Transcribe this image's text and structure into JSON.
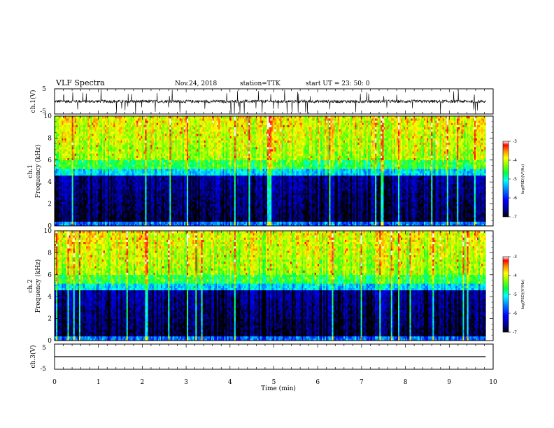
{
  "header": {
    "title": "VLF Spectra",
    "date": "Nov.24, 2018",
    "station": "station=TTK",
    "start_ut": "start UT =   23: 50: 0"
  },
  "chart_data": [
    {
      "type": "line",
      "name": "ch1-waveform",
      "ylabel": "ch.1(V)",
      "ylim": [
        -5,
        5
      ],
      "yticks": [
        "5",
        "-5"
      ],
      "description_values": {
        "baseline_v": 0,
        "spike_range_v": [
          -5,
          5
        ]
      }
    },
    {
      "type": "heatmap",
      "name": "ch1-spectrogram",
      "ylabel": "ch.1\nFrequency (kHz)",
      "ylabel_lines": [
        "ch.1",
        "Frequency (kHz)"
      ],
      "ylim": [
        0,
        10
      ],
      "yticks": [
        "0",
        "2",
        "4",
        "6",
        "8",
        "10"
      ],
      "xlim": [
        0,
        9.83
      ],
      "colorbar": {
        "label": "log(PSD)(V²/Hz)",
        "range": [
          -7,
          -3
        ],
        "ticks": [
          "-3",
          "-4",
          "-5",
          "-6",
          "-7"
        ]
      }
    },
    {
      "type": "heatmap",
      "name": "ch2-spectrogram",
      "ylabel": "ch.2\nFrequency (kHz)",
      "ylabel_lines": [
        "ch.2",
        "Frequency (kHz)"
      ],
      "ylim": [
        0,
        10
      ],
      "yticks": [
        "0",
        "2",
        "4",
        "6",
        "8",
        "10"
      ],
      "xlim": [
        0,
        9.83
      ],
      "colorbar": {
        "label": "log(PSD)(V²/Hz)",
        "range": [
          -7,
          -3
        ],
        "ticks": [
          "-3",
          "-4",
          "-5",
          "-6",
          "-7"
        ]
      }
    },
    {
      "type": "line",
      "name": "ch3-waveform",
      "ylabel": "ch.3(V)",
      "ylim": [
        -5,
        5
      ],
      "yticks": [
        "5",
        "-5"
      ],
      "description_values": {
        "constant_v": 0
      }
    }
  ],
  "xaxis": {
    "label": "Time (min)",
    "range": [
      0,
      10
    ],
    "ticks": [
      "0",
      "1",
      "2",
      "3",
      "4",
      "5",
      "6",
      "7",
      "8",
      "9",
      "10"
    ]
  }
}
